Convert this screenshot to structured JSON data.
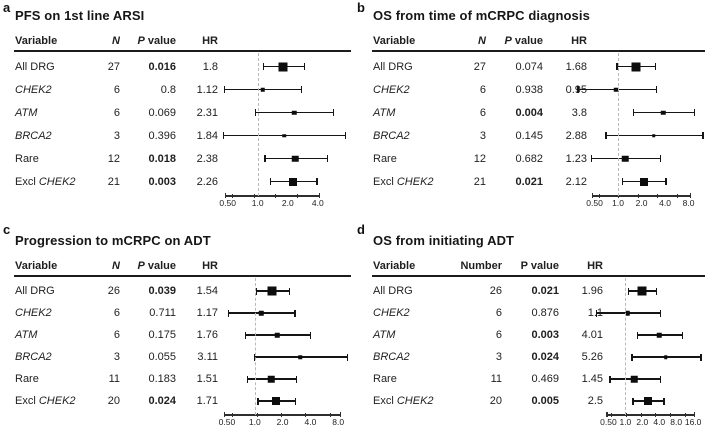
{
  "figure": {
    "kind": "four-panel forest plot figure",
    "background": "#ffffff",
    "text_color": "#1f1f1f",
    "marker_color": "#0d0d0d",
    "ref_line_color": "#b9b9b9"
  },
  "chart_data": [
    {
      "type": "forest",
      "panel_label": "a",
      "title": "PFS on 1st line ARSI",
      "columns": [
        {
          "label": "Variable",
          "italic": false
        },
        {
          "label": "N",
          "italic": true
        },
        {
          "label": "P value",
          "italic_first_word": true
        },
        {
          "label": "HR",
          "italic": false
        }
      ],
      "x_axis": {
        "scale": "log",
        "domain": [
          0.4,
          8.6
        ],
        "ref_line": 1.0,
        "ticks": [
          {
            "value": 0.5,
            "label": "0.50"
          },
          {
            "value": 1,
            "label": "1.0"
          },
          {
            "value": 2,
            "label": "2.0"
          },
          {
            "value": 4,
            "label": "4.0"
          }
        ]
      },
      "rows": [
        {
          "name_parts": [
            {
              "text": "All DRG",
              "italic": false
            }
          ],
          "n": 27,
          "p_value": "0.016",
          "p_bold": true,
          "hr_label": "1.8",
          "hr": 1.8,
          "ci_low": 1.12,
          "ci_high": 2.9
        },
        {
          "name_parts": [
            {
              "text": "CHEK2",
              "italic": true
            }
          ],
          "n": 6,
          "p_value": "0.8",
          "p_bold": false,
          "hr_label": "1.12",
          "hr": 1.12,
          "ci_low": 0.46,
          "ci_high": 2.72
        },
        {
          "name_parts": [
            {
              "text": "ATM",
              "italic": true
            }
          ],
          "n": 6,
          "p_value": "0.069",
          "p_bold": false,
          "hr_label": "2.31",
          "hr": 2.31,
          "ci_low": 0.94,
          "ci_high": 5.65
        },
        {
          "name_parts": [
            {
              "text": "BRCA2",
              "italic": true
            }
          ],
          "n": 3,
          "p_value": "0.396",
          "p_bold": false,
          "hr_label": "1.84",
          "hr": 1.84,
          "ci_low": 0.45,
          "ci_high": 7.5
        },
        {
          "name_parts": [
            {
              "text": "Rare",
              "italic": false
            }
          ],
          "n": 12,
          "p_value": "0.018",
          "p_bold": true,
          "hr_label": "2.38",
          "hr": 2.38,
          "ci_low": 1.16,
          "ci_high": 4.9
        },
        {
          "name_parts": [
            {
              "text": "Excl ",
              "italic": false
            },
            {
              "text": "CHEK2",
              "italic": true
            }
          ],
          "n": 21,
          "p_value": "0.003",
          "p_bold": true,
          "hr_label": "2.26",
          "hr": 2.26,
          "ci_low": 1.32,
          "ci_high": 3.88
        }
      ]
    },
    {
      "type": "forest",
      "panel_label": "b",
      "title": "OS from time of mCRPC diagnosis",
      "columns": [
        {
          "label": "Variable",
          "italic": false
        },
        {
          "label": "N",
          "italic": true
        },
        {
          "label": "P value",
          "italic_first_word": true
        },
        {
          "label": "HR",
          "italic": false
        }
      ],
      "x_axis": {
        "scale": "log",
        "domain": [
          0.4,
          13
        ],
        "ref_line": 1.0,
        "ticks": [
          {
            "value": 0.5,
            "label": "0.50"
          },
          {
            "value": 1,
            "label": "1.0"
          },
          {
            "value": 2,
            "label": "2.0"
          },
          {
            "value": 4,
            "label": "4.0"
          },
          {
            "value": 8,
            "label": "8.0"
          }
        ]
      },
      "rows": [
        {
          "name_parts": [
            {
              "text": "All DRG",
              "italic": false
            }
          ],
          "n": 27,
          "p_value": "0.074",
          "p_bold": false,
          "hr_label": "1.68",
          "hr": 1.68,
          "ci_low": 0.95,
          "ci_high": 2.97
        },
        {
          "name_parts": [
            {
              "text": "CHEK2",
              "italic": true
            }
          ],
          "n": 6,
          "p_value": "0.938",
          "p_bold": false,
          "hr_label": "0.95",
          "hr": 0.95,
          "ci_low": 0.3,
          "ci_high": 3.05
        },
        {
          "name_parts": [
            {
              "text": "ATM",
              "italic": true
            }
          ],
          "n": 6,
          "p_value": "0.004",
          "p_bold": true,
          "hr_label": "3.8",
          "hr": 3.8,
          "ci_low": 1.55,
          "ci_high": 9.3
        },
        {
          "name_parts": [
            {
              "text": "BRCA2",
              "italic": true
            }
          ],
          "n": 3,
          "p_value": "0.145",
          "p_bold": false,
          "hr_label": "2.88",
          "hr": 2.88,
          "ci_low": 0.69,
          "ci_high": 12.0
        },
        {
          "name_parts": [
            {
              "text": "Rare",
              "italic": false
            }
          ],
          "n": 12,
          "p_value": "0.682",
          "p_bold": false,
          "hr_label": "1.23",
          "hr": 1.23,
          "ci_low": 0.45,
          "ci_high": 3.4
        },
        {
          "name_parts": [
            {
              "text": "Excl ",
              "italic": false
            },
            {
              "text": "CHEK2",
              "italic": true
            }
          ],
          "n": 21,
          "p_value": "0.021",
          "p_bold": true,
          "hr_label": "2.12",
          "hr": 2.12,
          "ci_low": 1.12,
          "ci_high": 4.01
        }
      ]
    },
    {
      "type": "forest",
      "panel_label": "c",
      "title": "Progression to mCRPC on ADT",
      "columns": [
        {
          "label": "Variable",
          "italic": false
        },
        {
          "label": "N",
          "italic": true
        },
        {
          "label": "P value",
          "italic_first_word": true
        },
        {
          "label": "HR",
          "italic": false
        }
      ],
      "x_axis": {
        "scale": "log",
        "domain": [
          0.4,
          11
        ],
        "ref_line": 1.0,
        "ticks": [
          {
            "value": 0.5,
            "label": "0.50"
          },
          {
            "value": 1,
            "label": "1.0"
          },
          {
            "value": 2,
            "label": "2.0"
          },
          {
            "value": 4,
            "label": "4.0"
          },
          {
            "value": 8,
            "label": "8.0"
          }
        ]
      },
      "rows": [
        {
          "name_parts": [
            {
              "text": "All DRG",
              "italic": false
            }
          ],
          "n": 26,
          "p_value": "0.039",
          "p_bold": true,
          "hr_label": "1.54",
          "hr": 1.54,
          "ci_low": 1.02,
          "ci_high": 2.32
        },
        {
          "name_parts": [
            {
              "text": "CHEK2",
              "italic": true
            }
          ],
          "n": 6,
          "p_value": "0.711",
          "p_bold": false,
          "hr_label": "1.17",
          "hr": 1.17,
          "ci_low": 0.51,
          "ci_high": 2.68
        },
        {
          "name_parts": [
            {
              "text": "ATM",
              "italic": true
            }
          ],
          "n": 6,
          "p_value": "0.175",
          "p_bold": false,
          "hr_label": "1.76",
          "hr": 1.76,
          "ci_low": 0.78,
          "ci_high": 3.97
        },
        {
          "name_parts": [
            {
              "text": "BRCA2",
              "italic": true
            }
          ],
          "n": 3,
          "p_value": "0.055",
          "p_bold": false,
          "hr_label": "3.11",
          "hr": 3.11,
          "ci_low": 0.98,
          "ci_high": 9.9
        },
        {
          "name_parts": [
            {
              "text": "Rare",
              "italic": false
            }
          ],
          "n": 11,
          "p_value": "0.183",
          "p_bold": false,
          "hr_label": "1.51",
          "hr": 1.51,
          "ci_low": 0.82,
          "ci_high": 2.78
        },
        {
          "name_parts": [
            {
              "text": "Excl ",
              "italic": false
            },
            {
              "text": "CHEK2",
              "italic": true
            }
          ],
          "n": 20,
          "p_value": "0.024",
          "p_bold": true,
          "hr_label": "1.71",
          "hr": 1.71,
          "ci_low": 1.07,
          "ci_high": 2.73
        }
      ]
    },
    {
      "type": "forest",
      "panel_label": "d",
      "title": "OS from initiating ADT",
      "columns": [
        {
          "label": "Variable",
          "italic": false
        },
        {
          "label": "Number",
          "italic": false
        },
        {
          "label": "P value",
          "italic_first_word": false
        },
        {
          "label": "HR",
          "italic": false
        }
      ],
      "x_axis": {
        "scale": "log",
        "domain": [
          0.4,
          26
        ],
        "ref_line": 1.0,
        "ticks": [
          {
            "value": 0.5,
            "label": "0.50"
          },
          {
            "value": 1,
            "label": "1.0"
          },
          {
            "value": 2,
            "label": "2.0"
          },
          {
            "value": 4,
            "label": "4.0"
          },
          {
            "value": 8,
            "label": "8.0"
          },
          {
            "value": 16,
            "label": "16.0"
          }
        ]
      },
      "rows": [
        {
          "name_parts": [
            {
              "text": "All DRG",
              "italic": false
            }
          ],
          "n": 26,
          "p_value": "0.021",
          "p_bold": true,
          "hr_label": "1.96",
          "hr": 1.96,
          "ci_low": 1.11,
          "ci_high": 3.46
        },
        {
          "name_parts": [
            {
              "text": "CHEK2",
              "italic": true
            }
          ],
          "n": 6,
          "p_value": "0.876",
          "p_bold": false,
          "hr_label": "1.1",
          "hr": 1.1,
          "ci_low": 0.3,
          "ci_high": 4.05
        },
        {
          "name_parts": [
            {
              "text": "ATM",
              "italic": true
            }
          ],
          "n": 6,
          "p_value": "0.003",
          "p_bold": true,
          "hr_label": "4.01",
          "hr": 4.01,
          "ci_low": 1.6,
          "ci_high": 10.0
        },
        {
          "name_parts": [
            {
              "text": "BRCA2",
              "italic": true
            }
          ],
          "n": 3,
          "p_value": "0.024",
          "p_bold": true,
          "hr_label": "5.26",
          "hr": 5.26,
          "ci_low": 1.28,
          "ci_high": 21.6
        },
        {
          "name_parts": [
            {
              "text": "Rare",
              "italic": false
            }
          ],
          "n": 11,
          "p_value": "0.469",
          "p_bold": false,
          "hr_label": "1.45",
          "hr": 1.45,
          "ci_low": 0.52,
          "ci_high": 4.05
        },
        {
          "name_parts": [
            {
              "text": "Excl ",
              "italic": false
            },
            {
              "text": "CHEK2",
              "italic": true
            }
          ],
          "n": 20,
          "p_value": "0.005",
          "p_bold": true,
          "hr_label": "2.5",
          "hr": 2.5,
          "ci_low": 1.32,
          "ci_high": 4.75
        }
      ]
    }
  ]
}
